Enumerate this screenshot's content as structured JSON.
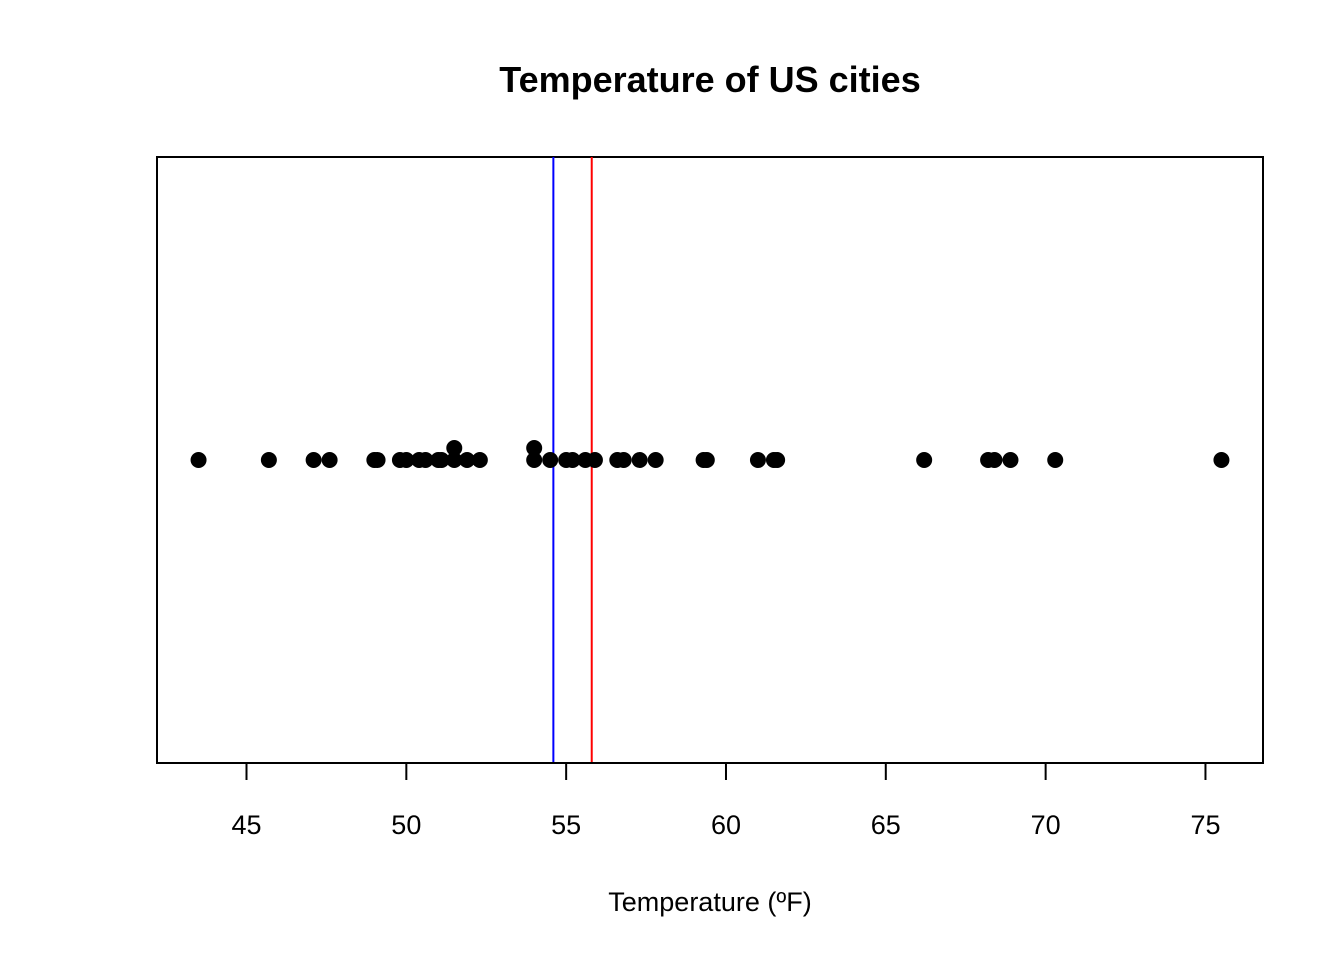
{
  "chart_data": {
    "type": "scatter",
    "subtype": "strip-chart (stacked dot plot)",
    "title": "Temperature of US cities",
    "xlabel": "Temperature (ºF)",
    "ylabel": "",
    "xlim": [
      42.2,
      76.8
    ],
    "x_ticks": [
      45,
      50,
      55,
      60,
      65,
      70,
      75
    ],
    "grid": false,
    "legend": "none",
    "points": [
      {
        "x": 43.5,
        "stack": 0
      },
      {
        "x": 45.7,
        "stack": 0
      },
      {
        "x": 47.1,
        "stack": 0
      },
      {
        "x": 47.6,
        "stack": 0
      },
      {
        "x": 49.0,
        "stack": 0
      },
      {
        "x": 49.1,
        "stack": 0
      },
      {
        "x": 49.8,
        "stack": 0
      },
      {
        "x": 50.0,
        "stack": 0
      },
      {
        "x": 50.4,
        "stack": 0
      },
      {
        "x": 50.6,
        "stack": 0
      },
      {
        "x": 51.0,
        "stack": 0
      },
      {
        "x": 51.1,
        "stack": 0
      },
      {
        "x": 51.5,
        "stack": 0
      },
      {
        "x": 51.5,
        "stack": 1
      },
      {
        "x": 51.9,
        "stack": 0
      },
      {
        "x": 52.3,
        "stack": 0
      },
      {
        "x": 54.0,
        "stack": 0
      },
      {
        "x": 54.0,
        "stack": 1
      },
      {
        "x": 54.5,
        "stack": 0
      },
      {
        "x": 55.0,
        "stack": 0
      },
      {
        "x": 55.2,
        "stack": 0
      },
      {
        "x": 55.6,
        "stack": 0
      },
      {
        "x": 55.9,
        "stack": 0
      },
      {
        "x": 56.6,
        "stack": 0
      },
      {
        "x": 56.8,
        "stack": 0
      },
      {
        "x": 57.3,
        "stack": 0
      },
      {
        "x": 57.8,
        "stack": 0
      },
      {
        "x": 59.3,
        "stack": 0
      },
      {
        "x": 59.4,
        "stack": 0
      },
      {
        "x": 61.0,
        "stack": 0
      },
      {
        "x": 61.5,
        "stack": 0
      },
      {
        "x": 61.6,
        "stack": 0
      },
      {
        "x": 66.2,
        "stack": 0
      },
      {
        "x": 68.2,
        "stack": 0
      },
      {
        "x": 68.4,
        "stack": 0
      },
      {
        "x": 68.9,
        "stack": 0
      },
      {
        "x": 70.3,
        "stack": 0
      },
      {
        "x": 75.5,
        "stack": 0
      }
    ],
    "reference_lines": [
      {
        "x": 54.6,
        "color": "#0000ff"
      },
      {
        "x": 55.8,
        "color": "#ff0000"
      }
    ],
    "colors": {
      "points": "#000000",
      "frame": "#000000",
      "background": "#ffffff"
    }
  }
}
